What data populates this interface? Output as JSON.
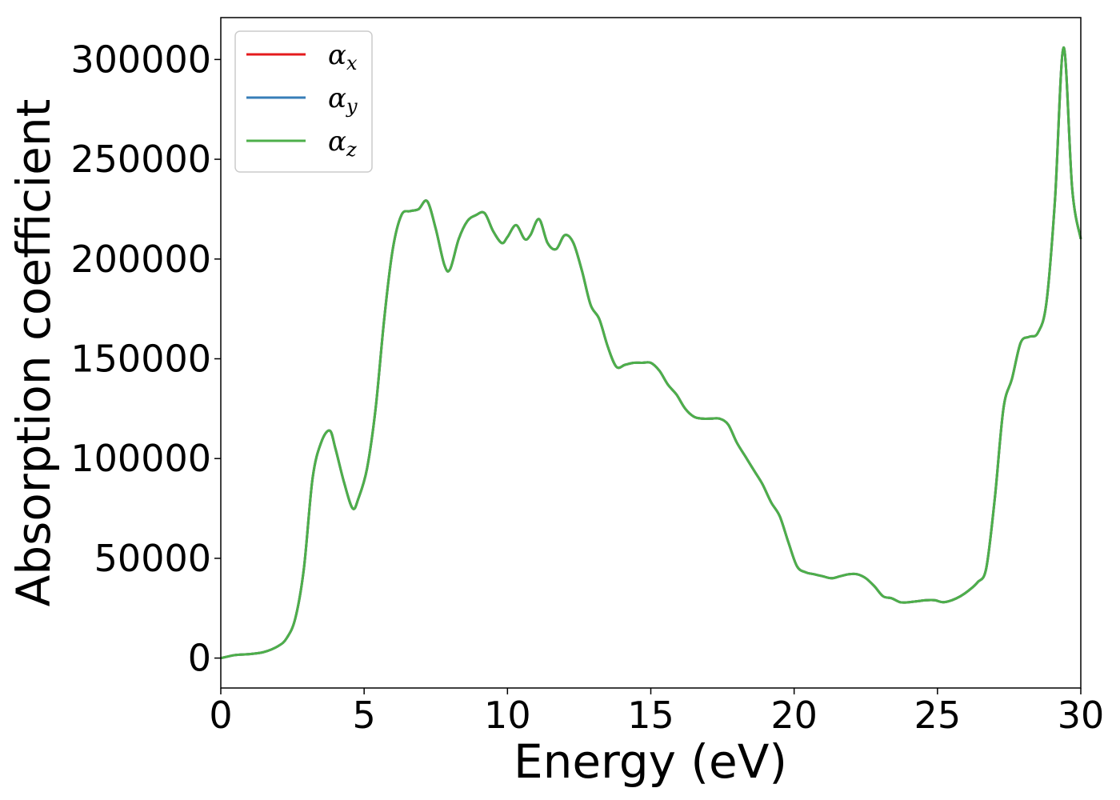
{
  "chart_data": {
    "type": "line",
    "xlabel": "Energy (eV)",
    "ylabel": "Absorption coefficient",
    "xlim": [
      0,
      30
    ],
    "ylim": [
      -15000,
      321000
    ],
    "x_ticks": [
      0,
      5,
      10,
      15,
      20,
      25,
      30
    ],
    "y_ticks": [
      0,
      50000,
      100000,
      150000,
      200000,
      250000,
      300000
    ],
    "grid": false,
    "legend_position": "top-left",
    "x": [
      0,
      0.5,
      1.0,
      1.5,
      2.0,
      2.3,
      2.6,
      2.9,
      3.2,
      3.5,
      3.8,
      4.0,
      4.3,
      4.6,
      4.8,
      5.1,
      5.4,
      5.7,
      6.0,
      6.3,
      6.6,
      6.9,
      7.2,
      7.5,
      7.8,
      8.0,
      8.3,
      8.6,
      8.9,
      9.2,
      9.5,
      9.8,
      10.0,
      10.3,
      10.6,
      10.8,
      11.1,
      11.4,
      11.7,
      12.0,
      12.3,
      12.6,
      12.9,
      13.2,
      13.5,
      13.8,
      14.1,
      14.4,
      14.7,
      15.0,
      15.3,
      15.6,
      15.9,
      16.2,
      16.5,
      16.8,
      17.1,
      17.4,
      17.7,
      18.0,
      18.3,
      18.6,
      18.9,
      19.2,
      19.5,
      19.8,
      20.1,
      20.4,
      20.7,
      21.0,
      21.3,
      21.6,
      21.9,
      22.2,
      22.5,
      22.8,
      23.1,
      23.4,
      23.7,
      24.0,
      24.3,
      24.6,
      24.9,
      25.2,
      25.5,
      25.8,
      26.1,
      26.4,
      26.7,
      27.0,
      27.3,
      27.6,
      27.9,
      28.2,
      28.5,
      28.8,
      29.1,
      29.4,
      29.7,
      30.0
    ],
    "series": [
      {
        "name": "αx",
        "color": "#e41a1c",
        "values": [
          0,
          1500,
          2000,
          3000,
          6000,
          10000,
          20000,
          45000,
          90000,
          108000,
          114000,
          105000,
          88000,
          75000,
          80000,
          95000,
          125000,
          170000,
          205000,
          222000,
          224000,
          225000,
          229000,
          215000,
          197000,
          195000,
          210000,
          219000,
          222000,
          223000,
          214000,
          208000,
          211000,
          217000,
          210000,
          212000,
          220000,
          208000,
          205000,
          212000,
          208000,
          194000,
          177000,
          170000,
          156000,
          146000,
          147000,
          148000,
          148000,
          148000,
          144000,
          137000,
          132000,
          125000,
          121000,
          120000,
          120000,
          120000,
          117000,
          108000,
          101000,
          94000,
          87000,
          78000,
          71000,
          58000,
          46000,
          43000,
          42000,
          41000,
          40000,
          41000,
          42000,
          42000,
          40000,
          36000,
          31000,
          30000,
          28000,
          28000,
          28500,
          29000,
          29000,
          28000,
          29000,
          31000,
          34000,
          38000,
          45000,
          80000,
          125000,
          140000,
          158000,
          161000,
          163000,
          178000,
          230000,
          306000,
          235000,
          210000
        ]
      },
      {
        "name": "αy",
        "color": "#377eb8",
        "values": [
          0,
          1500,
          2000,
          3000,
          6000,
          10000,
          20000,
          45000,
          90000,
          108000,
          114000,
          105000,
          88000,
          75000,
          80000,
          95000,
          125000,
          170000,
          205000,
          222000,
          224000,
          225000,
          229000,
          215000,
          197000,
          195000,
          210000,
          219000,
          222000,
          223000,
          214000,
          208000,
          211000,
          217000,
          210000,
          212000,
          220000,
          208000,
          205000,
          212000,
          208000,
          194000,
          177000,
          170000,
          156000,
          146000,
          147000,
          148000,
          148000,
          148000,
          144000,
          137000,
          132000,
          125000,
          121000,
          120000,
          120000,
          120000,
          117000,
          108000,
          101000,
          94000,
          87000,
          78000,
          71000,
          58000,
          46000,
          43000,
          42000,
          41000,
          40000,
          41000,
          42000,
          42000,
          40000,
          36000,
          31000,
          30000,
          28000,
          28000,
          28500,
          29000,
          29000,
          28000,
          29000,
          31000,
          34000,
          38000,
          45000,
          80000,
          125000,
          140000,
          158000,
          161000,
          163000,
          178000,
          230000,
          306000,
          235000,
          210000
        ]
      },
      {
        "name": "αz",
        "color": "#4daf4a",
        "values": [
          0,
          1500,
          2000,
          3000,
          6000,
          10000,
          20000,
          45000,
          90000,
          108000,
          114000,
          105000,
          88000,
          75000,
          80000,
          95000,
          125000,
          170000,
          205000,
          222000,
          224000,
          225000,
          229000,
          215000,
          197000,
          195000,
          210000,
          219000,
          222000,
          223000,
          214000,
          208000,
          211000,
          217000,
          210000,
          212000,
          220000,
          208000,
          205000,
          212000,
          208000,
          194000,
          177000,
          170000,
          156000,
          146000,
          147000,
          148000,
          148000,
          148000,
          144000,
          137000,
          132000,
          125000,
          121000,
          120000,
          120000,
          120000,
          117000,
          108000,
          101000,
          94000,
          87000,
          78000,
          71000,
          58000,
          46000,
          43000,
          42000,
          41000,
          40000,
          41000,
          42000,
          42000,
          40000,
          36000,
          31000,
          30000,
          28000,
          28000,
          28500,
          29000,
          29000,
          28000,
          29000,
          31000,
          34000,
          38000,
          45000,
          80000,
          125000,
          140000,
          158000,
          161000,
          163000,
          178000,
          230000,
          306000,
          235000,
          210000
        ]
      }
    ],
    "legend": [
      {
        "symbol": "α",
        "sub": "x",
        "color": "#e41a1c"
      },
      {
        "symbol": "α",
        "sub": "y",
        "color": "#377eb8"
      },
      {
        "symbol": "α",
        "sub": "z",
        "color": "#4daf4a"
      }
    ]
  }
}
